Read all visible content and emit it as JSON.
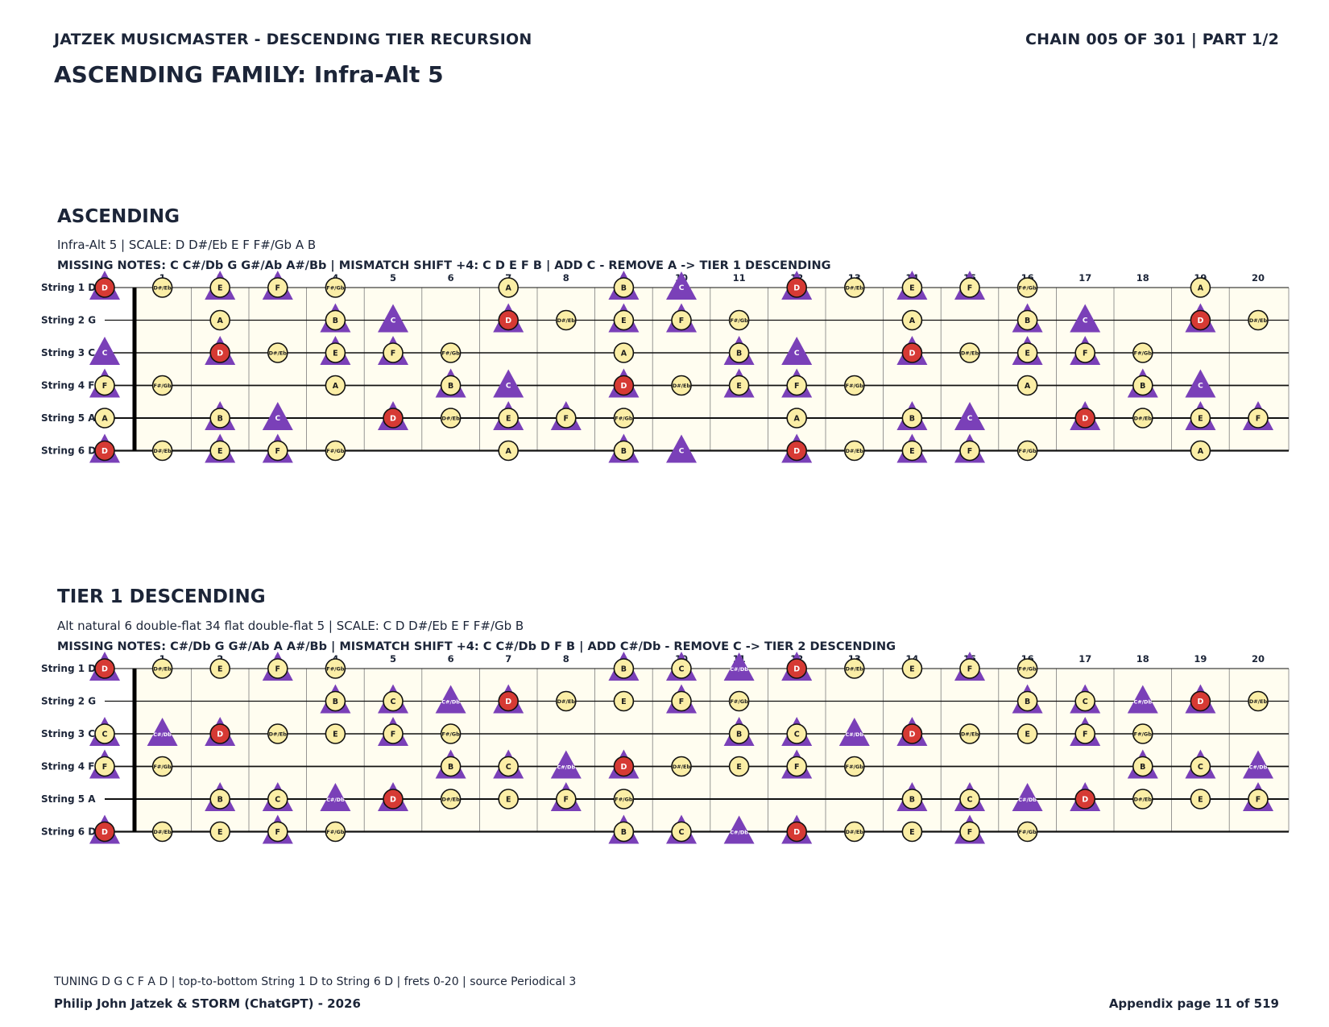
{
  "header": {
    "left": "JATZEK MUSICMASTER - DESCENDING TIER RECURSION",
    "right": "CHAIN 005 OF 301  |  PART 1/2",
    "title": "ASCENDING FAMILY: Infra-Alt 5"
  },
  "legend_colors": {
    "root": "#d63a34",
    "tone": "#fbeea6",
    "added": "#7a40b8",
    "board_bg": "#fffdf0"
  },
  "fret_numbers": [
    "0",
    "1",
    "2",
    "3",
    "4",
    "5",
    "6",
    "7",
    "8",
    "9",
    "10",
    "11",
    "12",
    "13",
    "14",
    "15",
    "16",
    "17",
    "18",
    "19",
    "20"
  ],
  "sections": [
    {
      "title": "ASCENDING",
      "subtitle": "Infra-Alt 5  |  SCALE: D D#/Eb E F F#/Gb A B",
      "missing": "MISSING NOTES: C C#/Db G G#/Ab A#/Bb  |  MISMATCH SHIFT +4: C D E F B  |  ADD C - REMOVE A -> TIER 1 DESCENDING",
      "string_labels": [
        "String 1 D",
        "String 2 G",
        "String 3 C",
        "String 4 F",
        "String 5 A",
        "String 6 D"
      ],
      "strings": [
        {
          "open": "D",
          "notes": [
            {
              "fret": 0,
              "note": "D",
              "root": true,
              "tri": true
            },
            {
              "fret": 1,
              "note": "D#/Eb"
            },
            {
              "fret": 2,
              "note": "E",
              "tri": true
            },
            {
              "fret": 3,
              "note": "F",
              "tri": true
            },
            {
              "fret": 4,
              "note": "F#/Gb"
            },
            {
              "fret": 7,
              "note": "A"
            },
            {
              "fret": 9,
              "note": "B",
              "tri": true
            },
            {
              "fret": 10,
              "note": "C",
              "added": true
            },
            {
              "fret": 12,
              "note": "D",
              "root": true,
              "tri": true
            },
            {
              "fret": 13,
              "note": "D#/Eb"
            },
            {
              "fret": 14,
              "note": "E",
              "tri": true
            },
            {
              "fret": 15,
              "note": "F",
              "tri": true
            },
            {
              "fret": 16,
              "note": "F#/Gb"
            },
            {
              "fret": 19,
              "note": "A"
            }
          ]
        },
        {
          "open": "G",
          "notes": [
            {
              "fret": 2,
              "note": "A"
            },
            {
              "fret": 4,
              "note": "B",
              "tri": true
            },
            {
              "fret": 5,
              "note": "C",
              "added": true
            },
            {
              "fret": 7,
              "note": "D",
              "root": true,
              "tri": true
            },
            {
              "fret": 8,
              "note": "D#/Eb"
            },
            {
              "fret": 9,
              "note": "E",
              "tri": true
            },
            {
              "fret": 10,
              "note": "F",
              "tri": true
            },
            {
              "fret": 11,
              "note": "F#/Gb"
            },
            {
              "fret": 14,
              "note": "A"
            },
            {
              "fret": 16,
              "note": "B",
              "tri": true
            },
            {
              "fret": 17,
              "note": "C",
              "added": true
            },
            {
              "fret": 19,
              "note": "D",
              "root": true,
              "tri": true
            },
            {
              "fret": 20,
              "note": "D#/Eb"
            }
          ]
        },
        {
          "open": "C",
          "notes": [
            {
              "fret": 0,
              "note": "C",
              "added": true
            },
            {
              "fret": 2,
              "note": "D",
              "root": true,
              "tri": true
            },
            {
              "fret": 3,
              "note": "D#/Eb"
            },
            {
              "fret": 4,
              "note": "E",
              "tri": true
            },
            {
              "fret": 5,
              "note": "F",
              "tri": true
            },
            {
              "fret": 6,
              "note": "F#/Gb"
            },
            {
              "fret": 9,
              "note": "A"
            },
            {
              "fret": 11,
              "note": "B",
              "tri": true
            },
            {
              "fret": 12,
              "note": "C",
              "added": true
            },
            {
              "fret": 14,
              "note": "D",
              "root": true,
              "tri": true
            },
            {
              "fret": 15,
              "note": "D#/Eb"
            },
            {
              "fret": 16,
              "note": "E",
              "tri": true
            },
            {
              "fret": 17,
              "note": "F",
              "tri": true
            },
            {
              "fret": 18,
              "note": "F#/Gb"
            }
          ]
        },
        {
          "open": "F",
          "notes": [
            {
              "fret": 0,
              "note": "F",
              "tri": true
            },
            {
              "fret": 1,
              "note": "F#/Gb"
            },
            {
              "fret": 4,
              "note": "A"
            },
            {
              "fret": 6,
              "note": "B",
              "tri": true
            },
            {
              "fret": 7,
              "note": "C",
              "added": true
            },
            {
              "fret": 9,
              "note": "D",
              "root": true,
              "tri": true
            },
            {
              "fret": 10,
              "note": "D#/Eb"
            },
            {
              "fret": 11,
              "note": "E",
              "tri": true
            },
            {
              "fret": 12,
              "note": "F",
              "tri": true
            },
            {
              "fret": 13,
              "note": "F#/Gb"
            },
            {
              "fret": 16,
              "note": "A"
            },
            {
              "fret": 18,
              "note": "B",
              "tri": true
            },
            {
              "fret": 19,
              "note": "C",
              "added": true
            }
          ]
        },
        {
          "open": "A",
          "notes": [
            {
              "fret": 0,
              "note": "A"
            },
            {
              "fret": 2,
              "note": "B",
              "tri": true
            },
            {
              "fret": 3,
              "note": "C",
              "added": true
            },
            {
              "fret": 5,
              "note": "D",
              "root": true,
              "tri": true
            },
            {
              "fret": 6,
              "note": "D#/Eb"
            },
            {
              "fret": 7,
              "note": "E",
              "tri": true
            },
            {
              "fret": 8,
              "note": "F",
              "tri": true
            },
            {
              "fret": 9,
              "note": "F#/Gb"
            },
            {
              "fret": 12,
              "note": "A"
            },
            {
              "fret": 14,
              "note": "B",
              "tri": true
            },
            {
              "fret": 15,
              "note": "C",
              "added": true
            },
            {
              "fret": 17,
              "note": "D",
              "root": true,
              "tri": true
            },
            {
              "fret": 18,
              "note": "D#/Eb"
            },
            {
              "fret": 19,
              "note": "E",
              "tri": true
            },
            {
              "fret": 20,
              "note": "F",
              "tri": true
            }
          ]
        },
        {
          "open": "D",
          "notes": [
            {
              "fret": 0,
              "note": "D",
              "root": true,
              "tri": true
            },
            {
              "fret": 1,
              "note": "D#/Eb"
            },
            {
              "fret": 2,
              "note": "E",
              "tri": true
            },
            {
              "fret": 3,
              "note": "F",
              "tri": true
            },
            {
              "fret": 4,
              "note": "F#/Gb"
            },
            {
              "fret": 7,
              "note": "A"
            },
            {
              "fret": 9,
              "note": "B",
              "tri": true
            },
            {
              "fret": 10,
              "note": "C",
              "added": true
            },
            {
              "fret": 12,
              "note": "D",
              "root": true,
              "tri": true
            },
            {
              "fret": 13,
              "note": "D#/Eb"
            },
            {
              "fret": 14,
              "note": "E",
              "tri": true
            },
            {
              "fret": 15,
              "note": "F",
              "tri": true
            },
            {
              "fret": 16,
              "note": "F#/Gb"
            },
            {
              "fret": 19,
              "note": "A"
            }
          ]
        }
      ]
    },
    {
      "title": "TIER 1 DESCENDING",
      "subtitle": "Alt natural 6 double-flat 34 flat double-flat 5  |  SCALE: C D D#/Eb E F F#/Gb B",
      "missing": "MISSING NOTES: C#/Db G G#/Ab A A#/Bb  |  MISMATCH SHIFT +4: C C#/Db D F B  |  ADD C#/Db - REMOVE C -> TIER 2 DESCENDING",
      "string_labels": [
        "String 1 D",
        "String 2 G",
        "String 3 C",
        "String 4 F",
        "String 5 A",
        "String 6 D"
      ],
      "strings": [
        {
          "open": "D",
          "notes": [
            {
              "fret": 0,
              "note": "D",
              "root": true,
              "tri": true
            },
            {
              "fret": 1,
              "note": "D#/Eb"
            },
            {
              "fret": 2,
              "note": "E"
            },
            {
              "fret": 3,
              "note": "F",
              "tri": true
            },
            {
              "fret": 4,
              "note": "F#/Gb"
            },
            {
              "fret": 9,
              "note": "B",
              "tri": true
            },
            {
              "fret": 10,
              "note": "C",
              "tri": true
            },
            {
              "fret": 11,
              "note": "C#/Db",
              "added": true
            },
            {
              "fret": 12,
              "note": "D",
              "root": true,
              "tri": true
            },
            {
              "fret": 13,
              "note": "D#/Eb"
            },
            {
              "fret": 14,
              "note": "E"
            },
            {
              "fret": 15,
              "note": "F",
              "tri": true
            },
            {
              "fret": 16,
              "note": "F#/Gb"
            }
          ]
        },
        {
          "open": "G",
          "notes": [
            {
              "fret": 4,
              "note": "B",
              "tri": true
            },
            {
              "fret": 5,
              "note": "C",
              "tri": true
            },
            {
              "fret": 6,
              "note": "C#/Db",
              "added": true
            },
            {
              "fret": 7,
              "note": "D",
              "root": true,
              "tri": true
            },
            {
              "fret": 8,
              "note": "D#/Eb"
            },
            {
              "fret": 9,
              "note": "E"
            },
            {
              "fret": 10,
              "note": "F",
              "tri": true
            },
            {
              "fret": 11,
              "note": "F#/Gb"
            },
            {
              "fret": 16,
              "note": "B",
              "tri": true
            },
            {
              "fret": 17,
              "note": "C",
              "tri": true
            },
            {
              "fret": 18,
              "note": "C#/Db",
              "added": true
            },
            {
              "fret": 19,
              "note": "D",
              "root": true,
              "tri": true
            },
            {
              "fret": 20,
              "note": "D#/Eb"
            }
          ]
        },
        {
          "open": "C",
          "notes": [
            {
              "fret": 0,
              "note": "C",
              "tri": true
            },
            {
              "fret": 1,
              "note": "C#/Db",
              "added": true
            },
            {
              "fret": 2,
              "note": "D",
              "root": true,
              "tri": true
            },
            {
              "fret": 3,
              "note": "D#/Eb"
            },
            {
              "fret": 4,
              "note": "E"
            },
            {
              "fret": 5,
              "note": "F",
              "tri": true
            },
            {
              "fret": 6,
              "note": "F#/Gb"
            },
            {
              "fret": 11,
              "note": "B",
              "tri": true
            },
            {
              "fret": 12,
              "note": "C",
              "tri": true
            },
            {
              "fret": 13,
              "note": "C#/Db",
              "added": true
            },
            {
              "fret": 14,
              "note": "D",
              "root": true,
              "tri": true
            },
            {
              "fret": 15,
              "note": "D#/Eb"
            },
            {
              "fret": 16,
              "note": "E"
            },
            {
              "fret": 17,
              "note": "F",
              "tri": true
            },
            {
              "fret": 18,
              "note": "F#/Gb"
            }
          ]
        },
        {
          "open": "F",
          "notes": [
            {
              "fret": 0,
              "note": "F",
              "tri": true
            },
            {
              "fret": 1,
              "note": "F#/Gb"
            },
            {
              "fret": 6,
              "note": "B",
              "tri": true
            },
            {
              "fret": 7,
              "note": "C",
              "tri": true
            },
            {
              "fret": 8,
              "note": "C#/Db",
              "added": true
            },
            {
              "fret": 9,
              "note": "D",
              "root": true,
              "tri": true
            },
            {
              "fret": 10,
              "note": "D#/Eb"
            },
            {
              "fret": 11,
              "note": "E"
            },
            {
              "fret": 12,
              "note": "F",
              "tri": true
            },
            {
              "fret": 13,
              "note": "F#/Gb"
            },
            {
              "fret": 18,
              "note": "B",
              "tri": true
            },
            {
              "fret": 19,
              "note": "C",
              "tri": true
            },
            {
              "fret": 20,
              "note": "C#/Db",
              "added": true
            }
          ]
        },
        {
          "open": "A",
          "notes": [
            {
              "fret": 2,
              "note": "B",
              "tri": true
            },
            {
              "fret": 3,
              "note": "C",
              "tri": true
            },
            {
              "fret": 4,
              "note": "C#/Db",
              "added": true
            },
            {
              "fret": 5,
              "note": "D",
              "root": true,
              "tri": true
            },
            {
              "fret": 6,
              "note": "D#/Eb"
            },
            {
              "fret": 7,
              "note": "E"
            },
            {
              "fret": 8,
              "note": "F",
              "tri": true
            },
            {
              "fret": 9,
              "note": "F#/Gb"
            },
            {
              "fret": 14,
              "note": "B",
              "tri": true
            },
            {
              "fret": 15,
              "note": "C",
              "tri": true
            },
            {
              "fret": 16,
              "note": "C#/Db",
              "added": true
            },
            {
              "fret": 17,
              "note": "D",
              "root": true,
              "tri": true
            },
            {
              "fret": 18,
              "note": "D#/Eb"
            },
            {
              "fret": 19,
              "note": "E"
            },
            {
              "fret": 20,
              "note": "F",
              "tri": true
            }
          ]
        },
        {
          "open": "D",
          "notes": [
            {
              "fret": 0,
              "note": "D",
              "root": true,
              "tri": true
            },
            {
              "fret": 1,
              "note": "D#/Eb"
            },
            {
              "fret": 2,
              "note": "E"
            },
            {
              "fret": 3,
              "note": "F",
              "tri": true
            },
            {
              "fret": 4,
              "note": "F#/Gb"
            },
            {
              "fret": 9,
              "note": "B",
              "tri": true
            },
            {
              "fret": 10,
              "note": "C",
              "tri": true
            },
            {
              "fret": 11,
              "note": "C#/Db",
              "added": true
            },
            {
              "fret": 12,
              "note": "D",
              "root": true,
              "tri": true
            },
            {
              "fret": 13,
              "note": "D#/Eb"
            },
            {
              "fret": 14,
              "note": "E"
            },
            {
              "fret": 15,
              "note": "F",
              "tri": true
            },
            {
              "fret": 16,
              "note": "F#/Gb"
            }
          ]
        }
      ]
    }
  ],
  "footer": {
    "info": "TUNING D G C F A D | top-to-bottom String 1 D to String 6 D | frets 0-20 | source Periodical 3",
    "authors": "Philip John Jatzek & STORM (ChatGPT) - 2026",
    "page": "Appendix page 11 of 519"
  }
}
